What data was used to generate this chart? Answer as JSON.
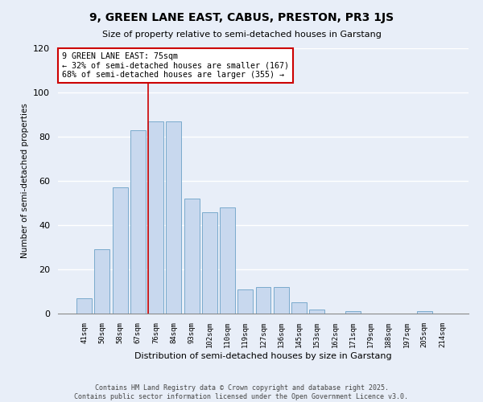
{
  "title": "9, GREEN LANE EAST, CABUS, PRESTON, PR3 1JS",
  "subtitle": "Size of property relative to semi-detached houses in Garstang",
  "xlabel": "Distribution of semi-detached houses by size in Garstang",
  "ylabel": "Number of semi-detached properties",
  "categories": [
    "41sqm",
    "50sqm",
    "58sqm",
    "67sqm",
    "76sqm",
    "84sqm",
    "93sqm",
    "102sqm",
    "110sqm",
    "119sqm",
    "127sqm",
    "136sqm",
    "145sqm",
    "153sqm",
    "162sqm",
    "171sqm",
    "179sqm",
    "188sqm",
    "197sqm",
    "205sqm",
    "214sqm"
  ],
  "values": [
    7,
    29,
    57,
    83,
    87,
    87,
    52,
    46,
    48,
    11,
    12,
    12,
    5,
    2,
    0,
    1,
    0,
    0,
    0,
    1,
    0
  ],
  "bar_color": "#c8d8ee",
  "bar_edge_color": "#7aaacc",
  "highlight_index": 4,
  "highlight_line_color": "#cc0000",
  "annotation_text_line1": "9 GREEN LANE EAST: 75sqm",
  "annotation_text_line2": "← 32% of semi-detached houses are smaller (167)",
  "annotation_text_line3": "68% of semi-detached houses are larger (355) →",
  "ylim": [
    0,
    120
  ],
  "yticks": [
    0,
    20,
    40,
    60,
    80,
    100,
    120
  ],
  "background_color": "#e8eef8",
  "grid_color": "#ffffff",
  "footer_line1": "Contains HM Land Registry data © Crown copyright and database right 2025.",
  "footer_line2": "Contains public sector information licensed under the Open Government Licence v3.0."
}
